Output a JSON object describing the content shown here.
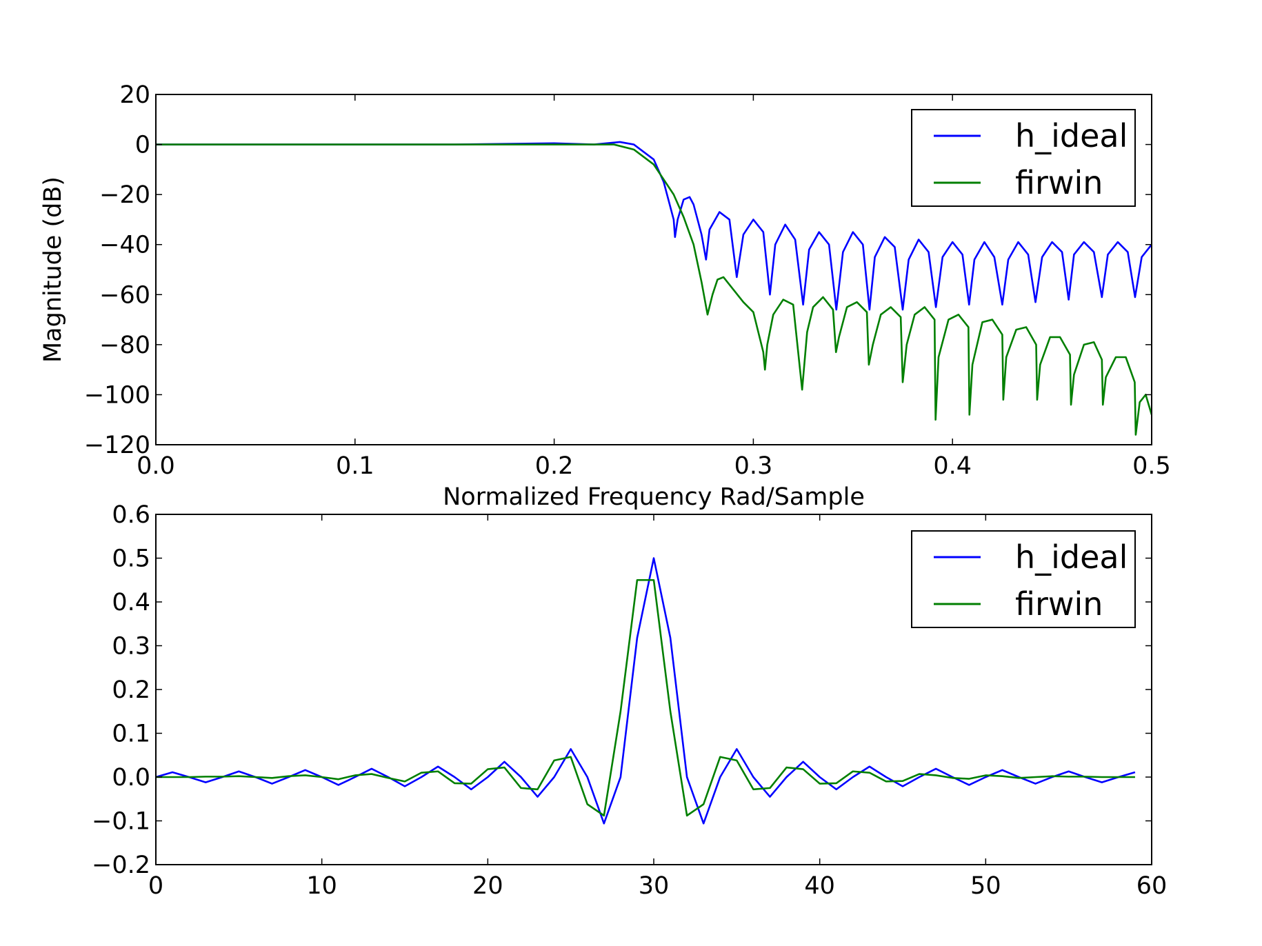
{
  "colors": {
    "h_ideal": "#0000ff",
    "firwin": "#007f00",
    "axes": "#000000",
    "background": "#ffffff"
  },
  "chart_data": [
    {
      "type": "line",
      "title": "",
      "xlabel": "Normalized Frequency Rad/Sample",
      "ylabel": "Magnitude (dB)",
      "xlim": [
        0.0,
        0.5
      ],
      "ylim": [
        -120,
        20
      ],
      "xticks": [
        "0.0",
        "0.1",
        "0.2",
        "0.3",
        "0.4",
        "0.5"
      ],
      "yticks": [
        "20",
        "0",
        "−20",
        "−40",
        "−60",
        "−80",
        "−100",
        "−120"
      ],
      "grid": false,
      "legend_position": "top-right",
      "series": [
        {
          "name": "h_ideal",
          "color": "#0000ff",
          "x": [
            0.0,
            0.05,
            0.1,
            0.15,
            0.2,
            0.22,
            0.233,
            0.24,
            0.25,
            0.255,
            0.26,
            0.26067,
            0.262,
            0.265,
            0.268,
            0.27,
            0.274,
            0.27625,
            0.278,
            0.283,
            0.288,
            0.29167,
            0.295,
            0.3,
            0.305,
            0.30833,
            0.311,
            0.316,
            0.321,
            0.325,
            0.328,
            0.333,
            0.338,
            0.34167,
            0.345,
            0.35,
            0.355,
            0.35833,
            0.361,
            0.366,
            0.371,
            0.375,
            0.378,
            0.383,
            0.388,
            0.39167,
            0.395,
            0.4,
            0.405,
            0.40833,
            0.411,
            0.416,
            0.421,
            0.425,
            0.428,
            0.433,
            0.438,
            0.44167,
            0.445,
            0.45,
            0.455,
            0.45833,
            0.461,
            0.466,
            0.471,
            0.475,
            0.478,
            0.483,
            0.488,
            0.49167,
            0.495,
            0.5
          ],
          "y": [
            0,
            0,
            0,
            0,
            0.5,
            0,
            1,
            0,
            -6,
            -15,
            -30,
            -37,
            -30,
            -22,
            -21,
            -24,
            -36,
            -46,
            -34,
            -27,
            -30,
            -53,
            -36,
            -30,
            -35,
            -60,
            -40,
            -32,
            -38,
            -64,
            -42,
            -35,
            -40,
            -66,
            -43,
            -35,
            -40,
            -66,
            -45,
            -37,
            -41,
            -66,
            -46,
            -38,
            -43,
            -65,
            -45,
            -39,
            -44,
            -64,
            -46,
            -39,
            -45,
            -64,
            -46,
            -39,
            -44,
            -63,
            -45,
            -39,
            -43,
            -62,
            -44,
            -39,
            -43,
            -61,
            -44,
            -39,
            -43,
            -61,
            -45,
            -40
          ]
        },
        {
          "name": "firwin",
          "color": "#007f00",
          "x": [
            0.0,
            0.1,
            0.2,
            0.22,
            0.23,
            0.24,
            0.25,
            0.26,
            0.265,
            0.27,
            0.274,
            0.277,
            0.2795,
            0.282,
            0.285,
            0.29,
            0.295,
            0.3,
            0.305,
            0.30583,
            0.307,
            0.31,
            0.315,
            0.32,
            0.3245,
            0.327,
            0.33,
            0.335,
            0.34,
            0.3415,
            0.343,
            0.347,
            0.352,
            0.357,
            0.358,
            0.36,
            0.364,
            0.369,
            0.374,
            0.375,
            0.377,
            0.381,
            0.386,
            0.391,
            0.3915,
            0.393,
            0.398,
            0.403,
            0.408,
            0.4085,
            0.41,
            0.415,
            0.42,
            0.425,
            0.4255,
            0.427,
            0.432,
            0.437,
            0.442,
            0.4425,
            0.444,
            0.449,
            0.454,
            0.459,
            0.4595,
            0.461,
            0.466,
            0.471,
            0.475,
            0.4755,
            0.477,
            0.482,
            0.487,
            0.4915,
            0.492,
            0.494,
            0.497,
            0.5
          ],
          "y": [
            0,
            0,
            0,
            0,
            0,
            -2,
            -8,
            -20,
            -29,
            -40,
            -55,
            -68,
            -60,
            -54,
            -53,
            -58,
            -63,
            -67,
            -83,
            -90,
            -80,
            -68,
            -62,
            -64,
            -98,
            -75,
            -65,
            -61,
            -66,
            -83,
            -77,
            -65,
            -63,
            -67,
            -88,
            -80,
            -68,
            -65,
            -69,
            -95,
            -80,
            -68,
            -65,
            -70,
            -110,
            -85,
            -70,
            -68,
            -73,
            -108,
            -88,
            -71,
            -70,
            -76,
            -102,
            -85,
            -74,
            -73,
            -80,
            -102,
            -88,
            -77,
            -77,
            -84,
            -104,
            -92,
            -80,
            -79,
            -86,
            -104,
            -93,
            -85,
            -85,
            -95,
            -116,
            -103,
            -100,
            -108
          ]
        }
      ]
    },
    {
      "type": "line",
      "title": "",
      "xlabel": "",
      "ylabel": "",
      "xlim": [
        0,
        60
      ],
      "ylim": [
        -0.2,
        0.6
      ],
      "xticks": [
        "0",
        "10",
        "20",
        "30",
        "40",
        "50",
        "60"
      ],
      "yticks": [
        "0.6",
        "0.5",
        "0.4",
        "0.3",
        "0.2",
        "0.1",
        "0.0",
        "−0.1",
        "−0.2"
      ],
      "grid": false,
      "legend_position": "top-right",
      "series": [
        {
          "name": "h_ideal",
          "color": "#0000ff",
          "x": [
            0,
            1,
            2,
            3,
            4,
            5,
            6,
            7,
            8,
            9,
            10,
            11,
            12,
            13,
            14,
            15,
            16,
            17,
            18,
            19,
            20,
            21,
            22,
            23,
            24,
            25,
            26,
            27,
            28,
            29,
            30,
            31,
            32,
            33,
            34,
            35,
            36,
            37,
            38,
            39,
            40,
            41,
            42,
            43,
            44,
            45,
            46,
            47,
            48,
            49,
            50,
            51,
            52,
            53,
            54,
            55,
            56,
            57,
            58,
            59
          ],
          "y": [
            0.0,
            0.011,
            0.0,
            -0.012,
            0.0,
            0.013,
            0.0,
            -0.015,
            0.0,
            0.016,
            0.0,
            -0.018,
            0.0,
            0.019,
            0.0,
            -0.021,
            0.0,
            0.024,
            0.0,
            -0.028,
            0.0,
            0.035,
            0.0,
            -0.045,
            0.0,
            0.064,
            0.0,
            -0.106,
            0.0,
            0.318,
            0.5,
            0.318,
            0.0,
            -0.106,
            0.0,
            0.064,
            0.0,
            -0.045,
            0.0,
            0.035,
            0.0,
            -0.028,
            0.0,
            0.024,
            0.0,
            -0.021,
            0.0,
            0.019,
            0.0,
            -0.018,
            0.0,
            0.016,
            0.0,
            -0.015,
            0.0,
            0.013,
            0.0,
            -0.012,
            0.0,
            0.011
          ]
        },
        {
          "name": "firwin",
          "color": "#007f00",
          "x": [
            0,
            1,
            2,
            3,
            4,
            5,
            6,
            7,
            8,
            9,
            10,
            11,
            12,
            13,
            14,
            15,
            16,
            17,
            18,
            19,
            20,
            21,
            22,
            23,
            24,
            25,
            26,
            27,
            28,
            29,
            30,
            31,
            32,
            33,
            34,
            35,
            36,
            37,
            38,
            39,
            40,
            41,
            42,
            43,
            44,
            45,
            46,
            47,
            48,
            49,
            50,
            51,
            52,
            53,
            54,
            55,
            56,
            57,
            58,
            59
          ],
          "y": [
            0.0,
            0.0,
            0.0,
            0.001,
            0.001,
            0.002,
            0.0,
            -0.002,
            0.002,
            0.004,
            0.0,
            -0.005,
            0.004,
            0.007,
            -0.002,
            -0.01,
            0.01,
            0.013,
            -0.014,
            -0.015,
            0.018,
            0.022,
            -0.025,
            -0.028,
            0.038,
            0.046,
            -0.062,
            -0.088,
            0.15,
            0.45,
            0.45,
            0.15,
            -0.088,
            -0.062,
            0.046,
            0.038,
            -0.028,
            -0.025,
            0.022,
            0.018,
            -0.015,
            -0.014,
            0.013,
            0.01,
            -0.01,
            -0.009,
            0.007,
            0.004,
            -0.002,
            -0.004,
            0.004,
            0.002,
            -0.002,
            0.0,
            0.002,
            0.001,
            0.001,
            0.0,
            0.0,
            0.0
          ]
        }
      ]
    }
  ]
}
